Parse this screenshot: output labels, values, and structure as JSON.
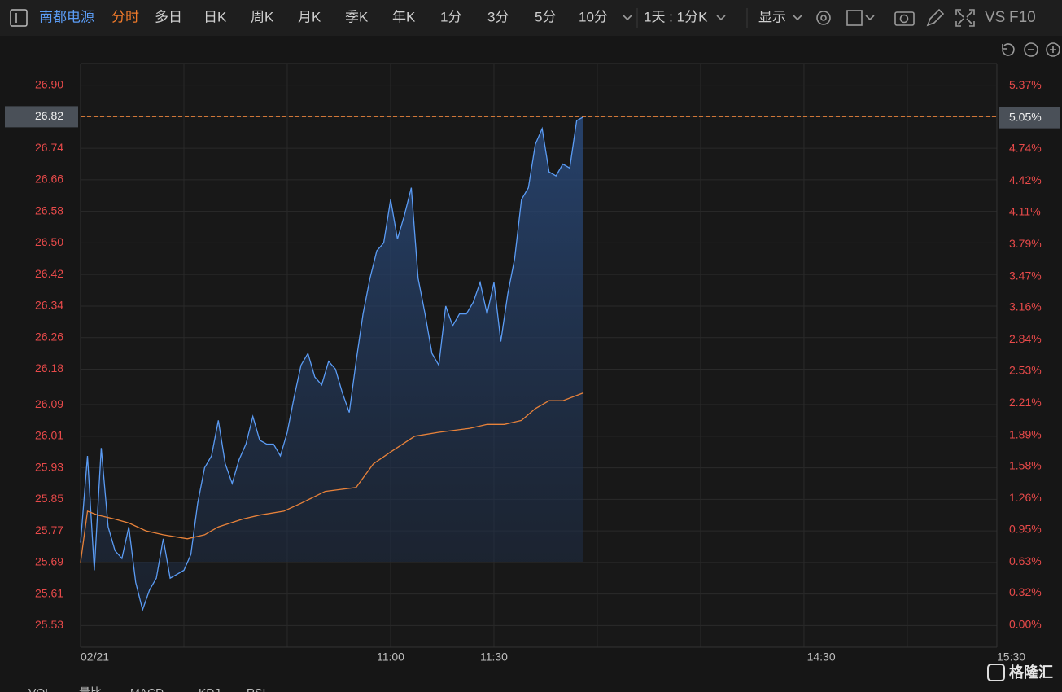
{
  "toolbar": {
    "stock": "南都电源",
    "tabs": [
      "分时",
      "多日",
      "日K",
      "周K",
      "月K",
      "季K",
      "年K",
      "1分",
      "3分",
      "5分",
      "10分"
    ],
    "period": "1天 : 1分K",
    "display": "显示",
    "vs": "VS",
    "f10": "F10"
  },
  "bottom_tabs": [
    "VOL",
    "量比",
    "MACD",
    "KDJ",
    "RSI"
  ],
  "watermark": "格隆汇",
  "chart_data": {
    "type": "line",
    "xlim": [
      0,
      266
    ],
    "xticks": [
      {
        "value": 0,
        "label": "02/21"
      },
      {
        "value": 90,
        "label": "11:00"
      },
      {
        "value": 120,
        "label": "11:30"
      },
      {
        "value": 215,
        "label": "14:30"
      },
      {
        "value": 266,
        "label": "15:30"
      }
    ],
    "ylim": [
      25.475,
      26.955
    ],
    "yticks": [
      {
        "value": 26.9,
        "label": "26.90"
      },
      26.82,
      26.74,
      26.66,
      26.58,
      {
        "value": 26.5,
        "label": "26.50"
      },
      26.42,
      26.34,
      26.26,
      26.18,
      26.09,
      26.01,
      25.93,
      25.85,
      25.77,
      25.69,
      25.61,
      25.53
    ],
    "y2lim": [
      -0.22,
      5.59
    ],
    "y2ticks": [
      {
        "value": 5.37,
        "label": "5.37%"
      },
      {
        "value": 5.05,
        "label": "5.05%"
      },
      {
        "value": 4.74,
        "label": "4.74%"
      },
      {
        "value": 4.42,
        "label": "4.42%"
      },
      {
        "value": 4.11,
        "label": "4.11%"
      },
      {
        "value": 3.79,
        "label": "3.79%"
      },
      {
        "value": 3.47,
        "label": "3.47%"
      },
      {
        "value": 3.16,
        "label": "3.16%"
      },
      {
        "value": 2.84,
        "label": "2.84%"
      },
      {
        "value": 2.53,
        "label": "2.53%"
      },
      {
        "value": 2.21,
        "label": "2.21%"
      },
      {
        "value": 1.89,
        "label": "1.89%"
      },
      {
        "value": 1.58,
        "label": "1.58%"
      },
      {
        "value": 1.26,
        "label": "1.26%"
      },
      {
        "value": 0.95,
        "label": "0.95%"
      },
      {
        "value": 0.63,
        "label": "0.63%"
      },
      {
        "value": 0.32,
        "label": "0.32%"
      },
      {
        "value": 0,
        "label": "0.00%"
      }
    ],
    "grid": true,
    "current": {
      "price": {
        "value": 26.82,
        "label": "26.82"
      },
      "change": {
        "value": 5.05,
        "label": "5.05%"
      }
    },
    "series": [
      {
        "color": "#5b9cf5",
        "area": true,
        "x": [
          0,
          2,
          4,
          6,
          8,
          10,
          12,
          14,
          16,
          18,
          20,
          22,
          24,
          26,
          28,
          30,
          32,
          34,
          36,
          38,
          40,
          42,
          44,
          46,
          48,
          50,
          52,
          54,
          56,
          58,
          60,
          62,
          64,
          66,
          68,
          70,
          72,
          74,
          76,
          78,
          80,
          82,
          84,
          86,
          88,
          90,
          92,
          94,
          96,
          98,
          100,
          102,
          104,
          106,
          108,
          110,
          112,
          114,
          116,
          118,
          120,
          122,
          124,
          126,
          128,
          130,
          132,
          134,
          136,
          138,
          140,
          142,
          144,
          146
        ],
        "values": [
          25.74,
          25.96,
          25.67,
          25.98,
          25.78,
          25.72,
          25.7,
          25.78,
          25.64,
          25.57,
          25.62,
          25.65,
          25.75,
          25.65,
          25.66,
          25.67,
          25.71,
          25.84,
          25.93,
          25.96,
          26.05,
          25.94,
          25.89,
          25.95,
          25.99,
          26.06,
          26.0,
          25.99,
          25.99,
          25.96,
          26.02,
          26.11,
          26.19,
          26.22,
          26.16,
          26.14,
          26.2,
          26.18,
          26.12,
          26.07,
          26.2,
          26.32,
          26.41,
          26.48,
          26.5,
          26.61,
          26.51,
          26.57,
          26.64,
          26.41,
          26.32,
          26.22,
          26.19,
          26.34,
          26.29,
          26.32,
          26.32,
          26.35,
          26.4,
          26.32,
          26.4,
          26.25,
          26.37,
          26.46,
          26.61,
          26.64,
          26.75,
          26.79,
          26.68,
          26.67,
          26.7,
          26.69,
          26.81,
          26.82
        ]
      },
      {
        "color": "#e8823a",
        "area": false,
        "x": [
          0,
          2,
          5,
          10,
          14,
          19,
          24,
          31,
          36,
          40,
          47,
          52,
          59,
          64,
          71,
          80,
          85,
          90,
          97,
          104,
          113,
          118,
          123,
          128,
          132,
          136,
          140,
          146
        ],
        "values": [
          25.69,
          25.82,
          25.81,
          25.8,
          25.79,
          25.77,
          25.76,
          25.75,
          25.76,
          25.78,
          25.8,
          25.81,
          25.82,
          25.84,
          25.87,
          25.88,
          25.94,
          25.97,
          26.01,
          26.02,
          26.03,
          26.04,
          26.04,
          26.05,
          26.08,
          26.1,
          26.1,
          26.12
        ]
      }
    ]
  }
}
